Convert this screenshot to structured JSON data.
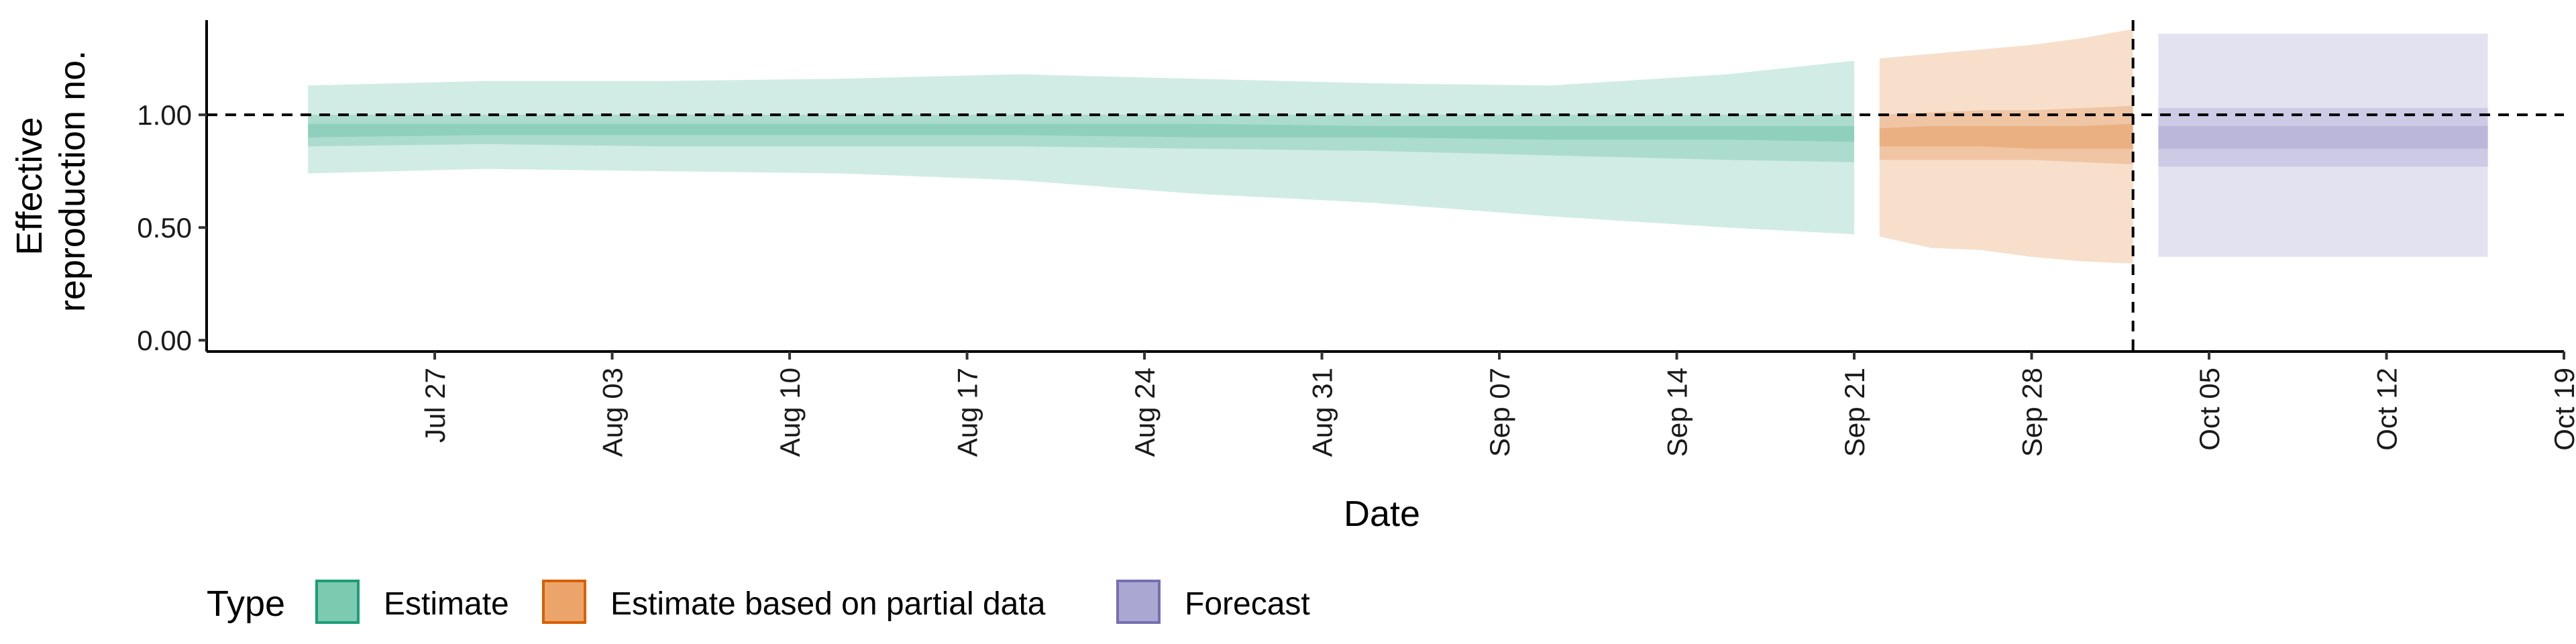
{
  "chart_data": {
    "type": "area",
    "xlabel": "Date",
    "ylabel": "Effective reproduction no.",
    "ylabel_lines": [
      "Effective",
      "reproduction no."
    ],
    "x_range": [
      "2020-07-18",
      "2020-10-19"
    ],
    "ylim": [
      -0.05,
      1.42
    ],
    "y_ticks": [
      0.0,
      0.5,
      1.0
    ],
    "y_tick_labels": [
      "0.00",
      "0.50",
      "1.00"
    ],
    "x_ticks": [
      "2020-07-27",
      "2020-08-03",
      "2020-08-10",
      "2020-08-17",
      "2020-08-24",
      "2020-08-31",
      "2020-09-07",
      "2020-09-14",
      "2020-09-21",
      "2020-09-28",
      "2020-10-05",
      "2020-10-12",
      "2020-10-19"
    ],
    "x_tick_labels": [
      "Jul 27",
      "Aug 03",
      "Aug 10",
      "Aug 17",
      "Aug 24",
      "Aug 31",
      "Sep 07",
      "Sep 14",
      "Sep 21",
      "Sep 28",
      "Oct 05",
      "Oct 12",
      "Oct 19"
    ],
    "reference_hline": 1.0,
    "reference_vline": "2020-10-02",
    "grid": false,
    "legend": {
      "title": "Type",
      "position": "bottom-left",
      "entries": [
        {
          "label": "Estimate",
          "fill": "#7ccaaf",
          "stroke": "#1b9e77"
        },
        {
          "label": "Estimate based on partial data",
          "fill": "#eba56b",
          "stroke": "#d95f02"
        },
        {
          "label": "Forecast",
          "fill": "#aaa7d2",
          "stroke": "#7570b3"
        }
      ]
    },
    "series": [
      {
        "type_key": "Estimate",
        "color": "#1b9e77",
        "x": [
          "2020-07-22",
          "2020-07-29",
          "2020-08-05",
          "2020-08-12",
          "2020-08-19",
          "2020-08-26",
          "2020-09-02",
          "2020-09-09",
          "2020-09-16",
          "2020-09-21"
        ],
        "outer_lower": [
          0.74,
          0.76,
          0.75,
          0.74,
          0.71,
          0.65,
          0.61,
          0.55,
          0.5,
          0.47
        ],
        "outer_upper": [
          1.13,
          1.15,
          1.15,
          1.16,
          1.18,
          1.16,
          1.14,
          1.13,
          1.18,
          1.24
        ],
        "mid_lower": [
          0.86,
          0.87,
          0.86,
          0.86,
          0.86,
          0.85,
          0.84,
          0.82,
          0.8,
          0.79
        ],
        "mid_upper": [
          1.0,
          1.0,
          1.0,
          1.0,
          1.0,
          1.0,
          1.0,
          1.0,
          1.0,
          1.0
        ],
        "inner_lower": [
          0.9,
          0.91,
          0.91,
          0.91,
          0.91,
          0.9,
          0.9,
          0.89,
          0.89,
          0.88
        ],
        "inner_upper": [
          0.96,
          0.96,
          0.96,
          0.96,
          0.96,
          0.96,
          0.95,
          0.95,
          0.95,
          0.95
        ]
      },
      {
        "type_key": "Estimate based on partial data",
        "color": "#d95f02",
        "x": [
          "2020-09-22",
          "2020-09-24",
          "2020-09-26",
          "2020-09-28",
          "2020-09-30",
          "2020-10-02"
        ],
        "outer_lower": [
          0.46,
          0.41,
          0.4,
          0.37,
          0.35,
          0.34
        ],
        "outer_upper": [
          1.25,
          1.27,
          1.29,
          1.31,
          1.34,
          1.38
        ],
        "mid_lower": [
          0.8,
          0.8,
          0.8,
          0.8,
          0.79,
          0.78
        ],
        "mid_upper": [
          1.0,
          1.01,
          1.02,
          1.02,
          1.03,
          1.04
        ],
        "inner_lower": [
          0.86,
          0.86,
          0.86,
          0.85,
          0.85,
          0.85
        ],
        "inner_upper": [
          0.94,
          0.95,
          0.95,
          0.95,
          0.95,
          0.96
        ]
      },
      {
        "type_key": "Forecast",
        "color": "#7570b3",
        "x": [
          "2020-10-03",
          "2020-10-16"
        ],
        "outer_lower": [
          0.37,
          0.37
        ],
        "outer_upper": [
          1.36,
          1.36
        ],
        "mid_lower": [
          0.77,
          0.77
        ],
        "mid_upper": [
          1.03,
          1.03
        ],
        "inner_lower": [
          0.85,
          0.85
        ],
        "inner_upper": [
          0.95,
          0.95
        ]
      }
    ]
  }
}
